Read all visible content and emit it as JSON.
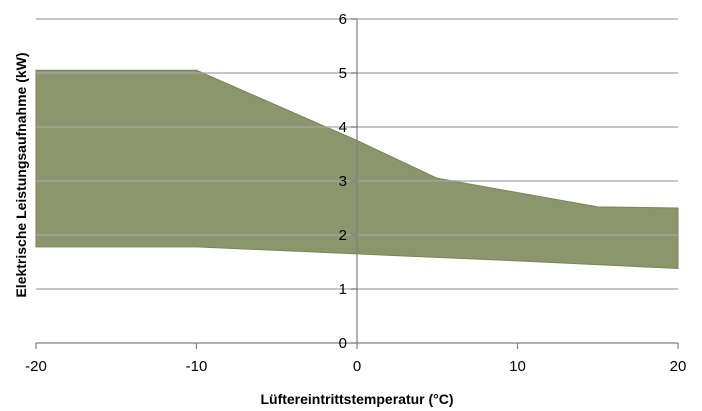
{
  "chart_data": {
    "type": "area",
    "title": "",
    "xlabel": "Lüftereintrittstemperatur (°C)",
    "ylabel": "Elektrische Leistungsaufnahme (kW)",
    "xlim": [
      -20,
      20
    ],
    "ylim": [
      0,
      6
    ],
    "x_ticks": [
      "-20",
      "-10",
      "0",
      "10",
      "20"
    ],
    "y_ticks": [
      "0",
      "1",
      "2",
      "3",
      "4",
      "5",
      "6"
    ],
    "grid": "horizontal",
    "legend": "none",
    "series": [
      {
        "upper": [
          [
            -20,
            5.05
          ],
          [
            -10,
            5.05
          ],
          [
            0,
            3.75
          ],
          [
            5,
            3.05
          ],
          [
            15,
            2.52
          ],
          [
            20,
            2.5
          ]
        ],
        "lower": [
          [
            -20,
            1.78
          ],
          [
            -10,
            1.78
          ],
          [
            0,
            1.65
          ],
          [
            10,
            1.52
          ],
          [
            20,
            1.38
          ]
        ]
      }
    ],
    "colors": {
      "fill": "#8c956b",
      "edge": "#7a8459",
      "grid": "#a6a6a6",
      "axis": "#808080"
    }
  }
}
